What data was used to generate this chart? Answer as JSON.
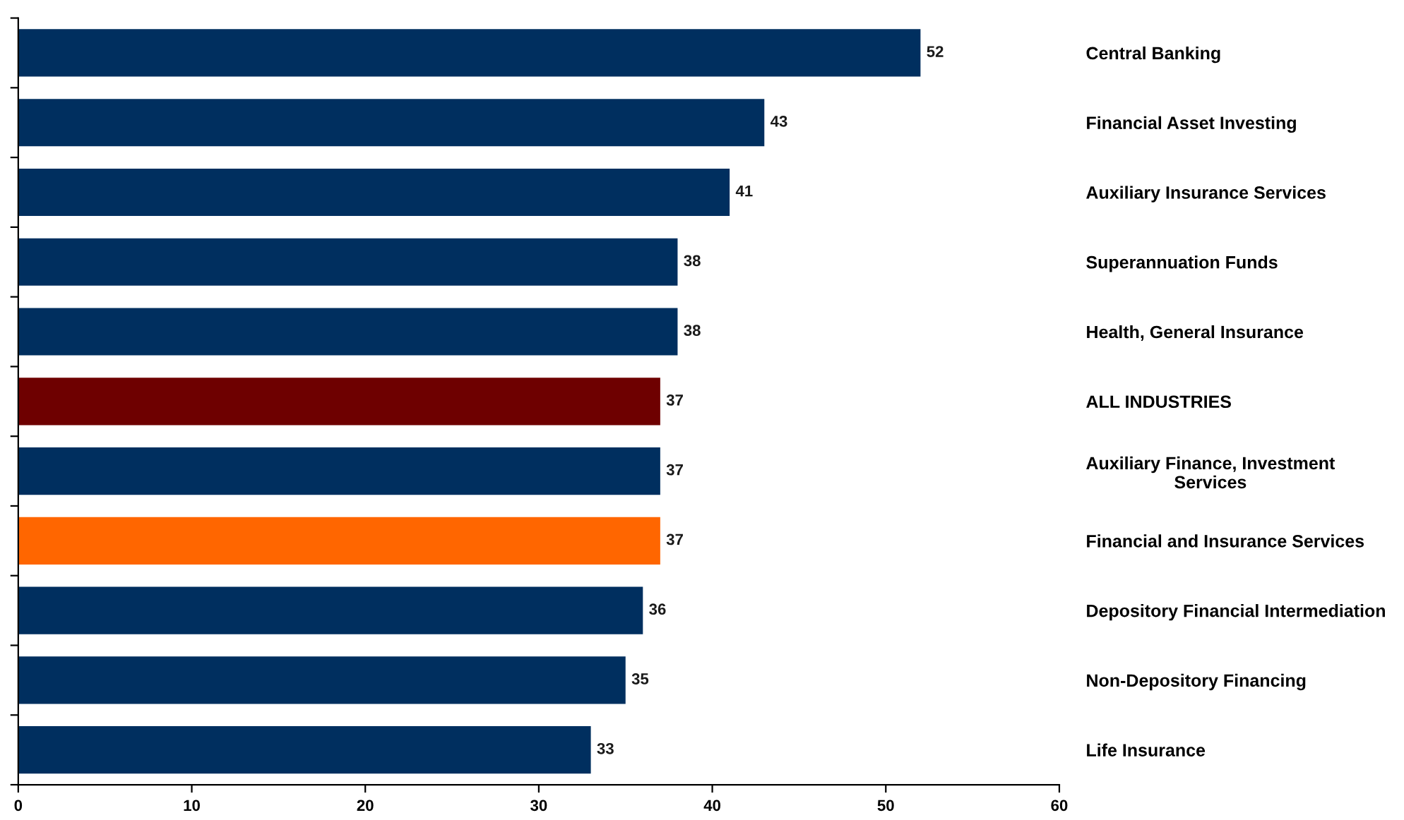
{
  "chart_data": {
    "type": "bar",
    "orientation": "horizontal",
    "categories": [
      "Central Banking",
      "Financial Asset Investing",
      "Auxiliary Insurance Services",
      "Superannuation Funds",
      "Health, General Insurance",
      "ALL INDUSTRIES",
      "Auxiliary Finance, Investment\nServices",
      "Financial and Insurance Services",
      "Depository Financial Intermediation",
      "Non-Depository Financing",
      "Life Insurance"
    ],
    "values": [
      52,
      43,
      41,
      38,
      38,
      37,
      37,
      37,
      36,
      35,
      33
    ],
    "colors": [
      "#002f5f",
      "#002f5f",
      "#002f5f",
      "#002f5f",
      "#002f5f",
      "#6e0000",
      "#002f5f",
      "#ff6600",
      "#002f5f",
      "#002f5f",
      "#002f5f"
    ],
    "xlim": [
      0,
      60
    ],
    "xticks": [
      0,
      10,
      20,
      30,
      40,
      50,
      60
    ],
    "data_labels": true
  }
}
